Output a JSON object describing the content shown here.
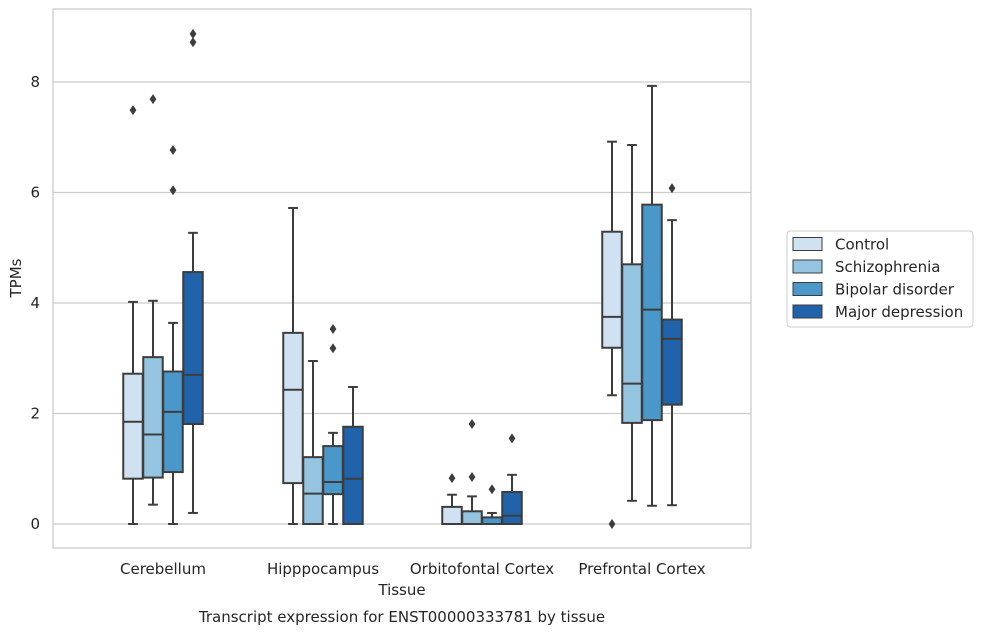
{
  "chart_data": {
    "type": "box",
    "title": "",
    "caption": "Transcript expression for ENST00000333781 by tissue",
    "xlabel": "Tissue",
    "ylabel": "TPMs",
    "ylim": [
      -0.4,
      9.3
    ],
    "yticks": [
      0,
      2,
      4,
      6,
      8
    ],
    "grid": "horizontal",
    "legend_position": "right",
    "categories": [
      "Cerebellum",
      "Hipppocampus",
      "Orbitofontal Cortex",
      "Prefrontal Cortex"
    ],
    "series": [
      {
        "name": "Control",
        "color": "#d0e1f2",
        "boxes": [
          {
            "whislo": 0.0,
            "q1": 0.82,
            "med": 1.85,
            "q3": 2.72,
            "whishi": 4.02,
            "fliers": [
              7.49
            ]
          },
          {
            "whislo": 0.0,
            "q1": 0.74,
            "med": 2.43,
            "q3": 3.46,
            "whishi": 5.72,
            "fliers": []
          },
          {
            "whislo": 0.0,
            "q1": 0.0,
            "med": 0.0,
            "q3": 0.31,
            "whishi": 0.53,
            "fliers": [
              0.83
            ]
          },
          {
            "whislo": 2.33,
            "q1": 3.19,
            "med": 3.75,
            "q3": 5.29,
            "whishi": 6.92,
            "fliers": [
              0.0
            ]
          }
        ]
      },
      {
        "name": "Schizophrenia",
        "color": "#94c4df",
        "boxes": [
          {
            "whislo": 0.35,
            "q1": 0.84,
            "med": 1.62,
            "q3": 3.02,
            "whishi": 4.04,
            "fliers": [
              7.69
            ]
          },
          {
            "whislo": 0.0,
            "q1": 0.0,
            "med": 0.55,
            "q3": 1.21,
            "whishi": 2.95,
            "fliers": []
          },
          {
            "whislo": 0.0,
            "q1": 0.0,
            "med": 0.0,
            "q3": 0.23,
            "whishi": 0.5,
            "fliers": [
              0.85,
              1.81
            ]
          },
          {
            "whislo": 0.42,
            "q1": 1.83,
            "med": 2.54,
            "q3": 4.7,
            "whishi": 6.86,
            "fliers": []
          }
        ]
      },
      {
        "name": "Bipolar disorder",
        "color": "#4a98c9",
        "boxes": [
          {
            "whislo": 0.0,
            "q1": 0.94,
            "med": 2.03,
            "q3": 2.76,
            "whishi": 3.64,
            "fliers": [
              6.04,
              6.77
            ]
          },
          {
            "whislo": 0.0,
            "q1": 0.54,
            "med": 0.76,
            "q3": 1.41,
            "whishi": 1.65,
            "fliers": [
              3.18,
              3.53
            ]
          },
          {
            "whislo": 0.0,
            "q1": 0.0,
            "med": 0.0,
            "q3": 0.12,
            "whishi": 0.2,
            "fliers": [
              0.63
            ]
          },
          {
            "whislo": 0.33,
            "q1": 1.88,
            "med": 3.88,
            "q3": 5.78,
            "whishi": 7.93,
            "fliers": []
          }
        ]
      },
      {
        "name": "Major depression",
        "color": "#2163aa",
        "boxes": [
          {
            "whislo": 0.2,
            "q1": 1.81,
            "med": 2.7,
            "q3": 4.56,
            "whishi": 5.27,
            "fliers": [
              8.72,
              8.87
            ]
          },
          {
            "whislo": 0.0,
            "q1": 0.0,
            "med": 0.82,
            "q3": 1.76,
            "whishi": 2.48,
            "fliers": []
          },
          {
            "whislo": 0.0,
            "q1": 0.0,
            "med": 0.15,
            "q3": 0.58,
            "whishi": 0.89,
            "fliers": [
              1.55
            ]
          },
          {
            "whislo": 0.34,
            "q1": 2.16,
            "med": 3.35,
            "q3": 3.7,
            "whishi": 5.5,
            "fliers": [
              6.08
            ]
          }
        ]
      }
    ]
  }
}
